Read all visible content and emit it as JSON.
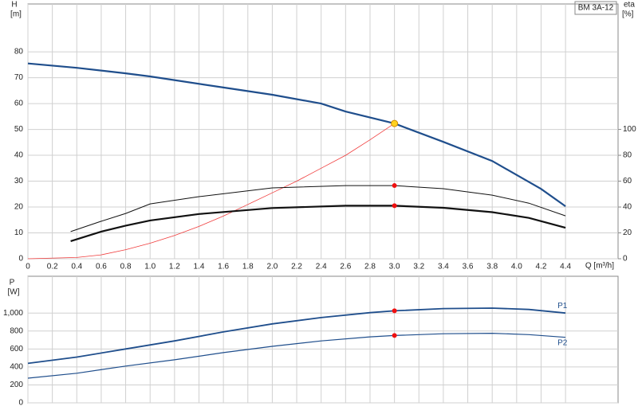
{
  "chart_data": [
    {
      "type": "line",
      "y_label": "H",
      "y_unit": "[m]",
      "y2_label": "eta",
      "y2_unit": "[%]",
      "title": "BM 3A-12",
      "x_label": "Q [m³/h]",
      "xlim": [
        0,
        4.83
      ],
      "ylim": [
        0,
        98.5
      ],
      "y2lim": [
        0,
        197
      ],
      "xticks": [
        0,
        0.2,
        0.4,
        0.6,
        0.8,
        {
          "value": 1.0,
          "label": "1.0"
        },
        1.2,
        1.4,
        1.6,
        1.8,
        {
          "value": 2.0,
          "label": "2.0"
        },
        2.2,
        2.4,
        2.6,
        2.8,
        {
          "value": 3.0,
          "label": "3.0"
        },
        3.2,
        3.4,
        3.6,
        3.8,
        {
          "value": 4.0,
          "label": "4.0"
        },
        4.2,
        4.4
      ],
      "yticks": [
        0,
        10,
        20,
        30,
        40,
        50,
        60,
        70,
        80
      ],
      "y2ticks": [
        0,
        20,
        40,
        60,
        80,
        100
      ],
      "grid": true,
      "series": [
        {
          "color": "#1f4e8c",
          "width": 2.2,
          "x": [
            0,
            0.4,
            0.8,
            1.0,
            1.6,
            2.0,
            2.4,
            2.6,
            3.0,
            3.4,
            3.8,
            4.2,
            4.4
          ],
          "values": [
            75.5,
            73.8,
            71.7,
            70.5,
            66.2,
            63.4,
            60.0,
            56.9,
            52.3,
            45.2,
            37.8,
            27.0,
            20.3
          ]
        },
        {
          "color": "#f03c3c",
          "width": 0.8,
          "axis": "y2",
          "x": [
            0,
            0.4,
            0.6,
            0.8,
            1.0,
            1.2,
            1.4,
            1.6,
            1.8,
            2.0,
            2.2,
            2.4,
            2.6,
            2.8,
            3.0
          ],
          "values": [
            0,
            1,
            3,
            7,
            12,
            18,
            25,
            33,
            42,
            51,
            60,
            70,
            80,
            92,
            104.6
          ]
        },
        {
          "color": "#111111",
          "width": 1,
          "x": [
            0.35,
            0.6,
            0.8,
            1.0,
            1.4,
            2.0,
            2.6,
            3.0,
            3.4,
            3.8,
            4.1,
            4.4
          ],
          "values": [
            10.5,
            14.5,
            17.5,
            21.2,
            24.0,
            27.4,
            28.3,
            28.3,
            27.1,
            24.6,
            21.5,
            16.6
          ]
        },
        {
          "color": "#111111",
          "width": 2.2,
          "x": [
            0.35,
            0.6,
            0.8,
            1.0,
            1.4,
            2.0,
            2.6,
            3.0,
            3.4,
            3.8,
            4.1,
            4.4
          ],
          "values": [
            6.8,
            10.5,
            12.8,
            14.8,
            17.3,
            19.6,
            20.5,
            20.5,
            19.7,
            18.0,
            15.8,
            12.0
          ]
        }
      ],
      "markers": [
        {
          "x": 3.0,
          "y": 52.3,
          "color": "#ffd21f"
        },
        {
          "x": 3.0,
          "y": 28.3,
          "color": "#f01010"
        },
        {
          "x": 3.0,
          "y": 20.5,
          "color": "#f01010"
        }
      ]
    },
    {
      "type": "line",
      "y_label": "P",
      "y_unit": "[W]",
      "xlim": [
        0,
        4.83
      ],
      "ylim": [
        0,
        1410
      ],
      "xticks": [
        0,
        0.2,
        0.4,
        0.6,
        0.8,
        1.0,
        1.2,
        1.4,
        1.6,
        1.8,
        2.0,
        2.2,
        2.4,
        2.6,
        2.8,
        3.0,
        3.2,
        3.4,
        3.6,
        3.8,
        4.0,
        4.2,
        4.4
      ],
      "yticks": [
        0,
        200,
        400,
        600,
        800,
        {
          "value": 1000,
          "label": "1,000"
        }
      ],
      "grid": true,
      "series": [
        {
          "name": "P1",
          "color": "#1f4e8c",
          "width": 1.8,
          "x": [
            0,
            0.4,
            0.8,
            1.2,
            1.6,
            2.0,
            2.4,
            2.8,
            3.0,
            3.4,
            3.8,
            4.1,
            4.4
          ],
          "values": [
            440,
            510,
            600,
            690,
            790,
            880,
            950,
            1005,
            1025,
            1050,
            1055,
            1040,
            1000
          ]
        },
        {
          "name": "P2",
          "color": "#1f4e8c",
          "width": 1.2,
          "x": [
            0,
            0.4,
            0.8,
            1.2,
            1.6,
            2.0,
            2.4,
            2.8,
            3.0,
            3.4,
            3.8,
            4.1,
            4.4
          ],
          "values": [
            275,
            330,
            410,
            480,
            560,
            630,
            690,
            735,
            750,
            770,
            775,
            760,
            730
          ]
        }
      ],
      "markers": [
        {
          "x": 3.0,
          "y": 1025,
          "color": "#f01010"
        },
        {
          "x": 3.0,
          "y": 750,
          "color": "#f01010"
        }
      ]
    }
  ]
}
